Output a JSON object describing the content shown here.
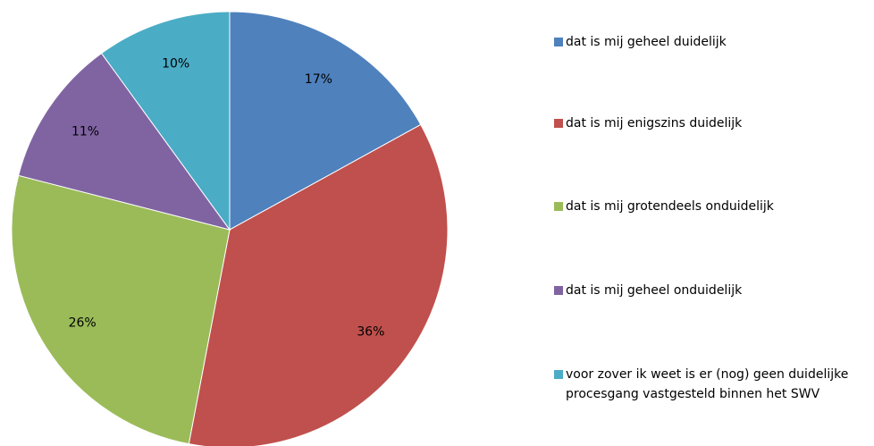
{
  "chart_data": {
    "type": "pie",
    "categories": [
      "dat is mij geheel duidelijk",
      "dat is mij enigszins duidelijk",
      "dat is mij grotendeels onduidelijk",
      "dat is mij geheel onduidelijk",
      "voor zover ik weet is er (nog) geen duidelijke procesgang vastgesteld binnen het SWV"
    ],
    "values": [
      17,
      36,
      26,
      11,
      10
    ],
    "value_labels": [
      "17%",
      "36%",
      "26%",
      "11%",
      "10%"
    ],
    "colors": [
      "#4f81bd",
      "#c0504d",
      "#9bbb59",
      "#8064a2",
      "#4bacc6"
    ],
    "legend": "right"
  }
}
